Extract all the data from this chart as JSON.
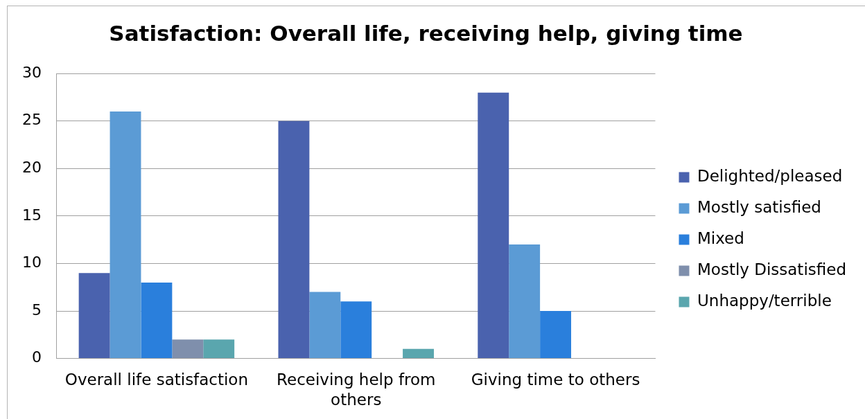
{
  "chart_data": {
    "type": "bar",
    "title": "Satisfaction: Overall life, receiving help, giving time",
    "categories": [
      "Overall life satisfaction",
      "Receiving help from others",
      "Giving time to others"
    ],
    "series": [
      {
        "name": "Delighted/pleased",
        "color": "#4a62ae",
        "values": [
          9,
          25,
          28
        ]
      },
      {
        "name": "Mostly satisfied",
        "color": "#5b9bd5",
        "values": [
          26,
          7,
          12
        ]
      },
      {
        "name": "Mixed",
        "color": "#2a7fdc",
        "values": [
          8,
          6,
          5
        ]
      },
      {
        "name": "Mostly Dissatisfied",
        "color": "#7f8fac",
        "values": [
          2,
          0,
          0
        ]
      },
      {
        "name": "Unhappy/terrible",
        "color": "#5aa6ae",
        "values": [
          2,
          1,
          0
        ]
      }
    ],
    "ylim": [
      0,
      30
    ],
    "yticks": [
      0,
      5,
      10,
      15,
      20,
      25,
      30
    ],
    "grid": "y",
    "legend": "right"
  }
}
